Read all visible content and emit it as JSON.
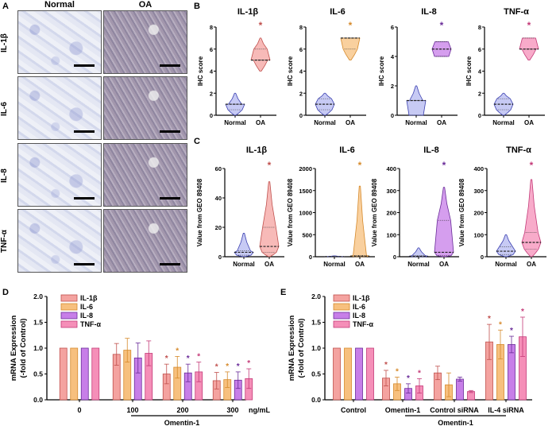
{
  "panels": {
    "A": "A",
    "B": "B",
    "C": "C",
    "D": "D",
    "E": "E"
  },
  "panel_a": {
    "columns": [
      "Normal",
      "OA"
    ],
    "rows": [
      "IL-1β",
      "IL-6",
      "IL-8",
      "TNF-α"
    ]
  },
  "colors": {
    "IL-1β": "#f4a3a0",
    "IL-6": "#f7c07e",
    "IL-8": "#c77ee8",
    "TNF-α": "#f58fb8",
    "normal": "#b4b8f0"
  },
  "chart_data": [
    {
      "panel": "B",
      "type": "violin",
      "title": "IL-1β",
      "ylabel": "IHC score",
      "categories": [
        "Normal",
        "OA"
      ],
      "ylim": [
        0,
        8
      ],
      "yticks": [
        0,
        2,
        4,
        6,
        8
      ],
      "groups": [
        {
          "min": 0,
          "q1": 0.5,
          "median": 1,
          "q3": 1,
          "max": 2
        },
        {
          "min": 4,
          "q1": 5,
          "median": 5,
          "q3": 6,
          "max": 7,
          "significant": true
        }
      ],
      "color": "#f4a3a0",
      "stroke": "#c0504d"
    },
    {
      "panel": "B",
      "type": "violin",
      "title": "IL-6",
      "ylabel": "IHC score",
      "categories": [
        "Normal",
        "OA"
      ],
      "ylim": [
        0,
        8
      ],
      "yticks": [
        0,
        2,
        4,
        6,
        8
      ],
      "groups": [
        {
          "min": 0,
          "q1": 0.5,
          "median": 1,
          "q3": 1.5,
          "max": 2
        },
        {
          "min": 5,
          "q1": 6,
          "median": 7,
          "q3": 7,
          "max": 7,
          "significant": true
        }
      ],
      "color": "#f7c07e",
      "stroke": "#d68a2c"
    },
    {
      "panel": "B",
      "type": "violin",
      "title": "IL-8",
      "ylabel": "IHC score",
      "categories": [
        "Normal",
        "OA"
      ],
      "ylim": [
        0,
        6
      ],
      "yticks": [
        0,
        2,
        4,
        6
      ],
      "groups": [
        {
          "min": 0,
          "q1": 0,
          "median": 1,
          "q3": 1,
          "max": 2
        },
        {
          "min": 4,
          "q1": 4,
          "median": 4.5,
          "q3": 5,
          "max": 5,
          "significant": true
        }
      ],
      "color": "#c77ee8",
      "stroke": "#6a2c99"
    },
    {
      "panel": "B",
      "type": "violin",
      "title": "TNF-α",
      "ylabel": "IHC score",
      "categories": [
        "Normal",
        "OA"
      ],
      "ylim": [
        0,
        8
      ],
      "yticks": [
        0,
        2,
        4,
        6,
        8
      ],
      "groups": [
        {
          "min": 0,
          "q1": 0.5,
          "median": 1,
          "q3": 1.5,
          "max": 2
        },
        {
          "min": 5,
          "q1": 6,
          "median": 6,
          "q3": 7,
          "max": 7,
          "significant": true
        }
      ],
      "color": "#f58fb8",
      "stroke": "#c43a78"
    },
    {
      "panel": "C",
      "type": "violin",
      "title": "IL-1β",
      "ylabel": "Value from GEO 89408",
      "categories": [
        "Normal",
        "OA"
      ],
      "ylim": [
        0,
        60
      ],
      "yticks": [
        0,
        20,
        40,
        60
      ],
      "groups": [
        {
          "min": 0,
          "q1": 1,
          "median": 3,
          "q3": 4,
          "max": 16
        },
        {
          "min": 0,
          "q1": 3,
          "median": 7,
          "q3": 20,
          "max": 51,
          "significant": true
        }
      ],
      "color": "#f4a3a0",
      "stroke": "#c0504d"
    },
    {
      "panel": "C",
      "type": "violin",
      "title": "IL-6",
      "ylabel": "Value from GEO 89408",
      "categories": [
        "Normal",
        "OA"
      ],
      "ylim": [
        0,
        2000
      ],
      "yticks": [
        0,
        500,
        1000,
        1500,
        2000
      ],
      "groups": [
        {
          "min": 0,
          "q1": 0,
          "median": 2,
          "q3": 5,
          "max": 20
        },
        {
          "min": 0,
          "q1": 5,
          "median": 15,
          "q3": 30,
          "max": 1600,
          "significant": true
        }
      ],
      "color": "#f7c07e",
      "stroke": "#d68a2c"
    },
    {
      "panel": "C",
      "type": "violin",
      "title": "IL-8",
      "ylabel": "Value from GEO 89408",
      "categories": [
        "Normal",
        "OA"
      ],
      "ylim": [
        0,
        400
      ],
      "yticks": [
        0,
        100,
        200,
        300,
        400
      ],
      "groups": [
        {
          "min": 0,
          "q1": 0,
          "median": 2,
          "q3": 5,
          "max": 40
        },
        {
          "min": 0,
          "q1": 5,
          "median": 20,
          "q3": 165,
          "max": 315,
          "significant": true
        }
      ],
      "color": "#c77ee8",
      "stroke": "#6a2c99"
    },
    {
      "panel": "C",
      "type": "violin",
      "title": "TNF-α",
      "ylabel": "Value from GEO 89408",
      "categories": [
        "Normal",
        "OA"
      ],
      "ylim": [
        0,
        400
      ],
      "yticks": [
        0,
        100,
        200,
        300,
        400
      ],
      "groups": [
        {
          "min": 0,
          "q1": 10,
          "median": 25,
          "q3": 45,
          "max": 100
        },
        {
          "min": 0,
          "q1": 35,
          "median": 65,
          "q3": 110,
          "max": 350,
          "significant": true
        }
      ],
      "color": "#f58fb8",
      "stroke": "#c43a78"
    },
    {
      "panel": "D",
      "type": "bar",
      "ylabel": [
        "mRNA Expression",
        "(-fold of Control)"
      ],
      "categories": [
        "0",
        "100",
        "200",
        "300"
      ],
      "unit": "ng/mL",
      "group_label": "Omentin-1",
      "ylim": [
        0,
        2
      ],
      "yticks": [
        0.0,
        0.5,
        1.0,
        1.5,
        2.0
      ],
      "significant_groups": [
        2,
        3
      ],
      "series": [
        {
          "name": "IL-1β",
          "values": [
            1,
            0.88,
            0.5,
            0.37
          ],
          "errors": [
            0,
            0.21,
            0.19,
            0.16
          ],
          "color": "#f4a3a0",
          "stroke": "#c0504d"
        },
        {
          "name": "IL-6",
          "values": [
            1,
            0.96,
            0.63,
            0.39
          ],
          "errors": [
            0,
            0.23,
            0.21,
            0.15
          ],
          "color": "#f7c07e",
          "stroke": "#d68a2c"
        },
        {
          "name": "IL-8",
          "values": [
            1,
            0.81,
            0.52,
            0.38
          ],
          "errors": [
            0,
            0.29,
            0.17,
            0.16
          ],
          "color": "#c77ee8",
          "stroke": "#6a2c99"
        },
        {
          "name": "TNF-α",
          "values": [
            1,
            0.9,
            0.54,
            0.41
          ],
          "errors": [
            0,
            0.24,
            0.19,
            0.19
          ],
          "color": "#f58fb8",
          "stroke": "#c43a78"
        }
      ]
    },
    {
      "panel": "E",
      "type": "bar",
      "ylabel": [
        "mRNA Expression",
        "(-fold of Control)"
      ],
      "categories": [
        "Control",
        "Omentin-1",
        "Control siRNA",
        "IL-4 siRNA"
      ],
      "unit": "",
      "group_label": "Omentin-1",
      "ylim": [
        0,
        2
      ],
      "yticks": [
        0.0,
        0.5,
        1.0,
        1.5,
        2.0
      ],
      "significant_groups": [
        1,
        3
      ],
      "series": [
        {
          "name": "IL-1β",
          "values": [
            1,
            0.42,
            0.52,
            1.12
          ],
          "errors": [
            0,
            0.15,
            0.13,
            0.34
          ],
          "color": "#f4a3a0",
          "stroke": "#c0504d"
        },
        {
          "name": "IL-6",
          "values": [
            1,
            0.31,
            0.29,
            1.07
          ],
          "errors": [
            0,
            0.13,
            0.23,
            0.28
          ],
          "color": "#f7c07e",
          "stroke": "#d68a2c"
        },
        {
          "name": "IL-8",
          "values": [
            1,
            0.22,
            0.4,
            1.07
          ],
          "errors": [
            0,
            0.09,
            0.04,
            0.16
          ],
          "color": "#c77ee8",
          "stroke": "#6a2c99"
        },
        {
          "name": "TNF-α",
          "values": [
            1,
            0.27,
            0.16,
            1.22
          ],
          "errors": [
            0,
            0.14,
            0.02,
            0.38
          ],
          "color": "#f58fb8",
          "stroke": "#c43a78"
        }
      ]
    }
  ]
}
